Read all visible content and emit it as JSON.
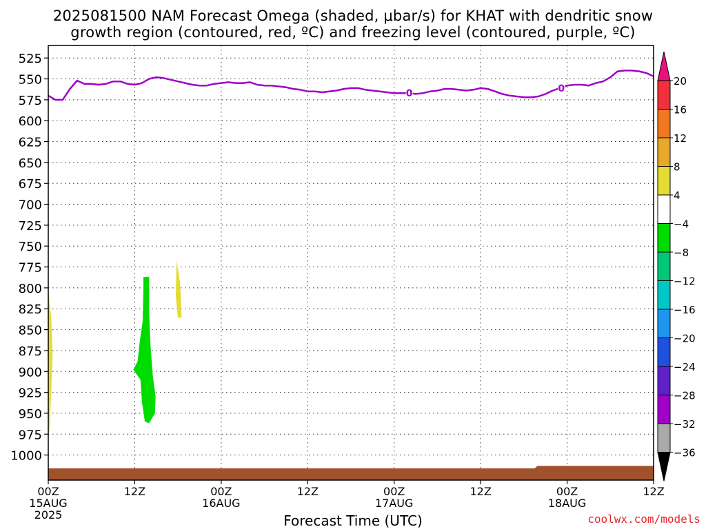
{
  "title_line1": "2025081500 NAM Forecast Omega (shaded, μbar/s) for KHAT with dendritic snow",
  "title_line2": "growth region (contoured, red, ºC) and freezing level (contoured, purple, ºC)",
  "credit": "coolwx.com/models",
  "chart_data": {
    "type": "heatmap",
    "xlabel": "Forecast Time (UTC)",
    "ylabel": "",
    "x_range_hours": [
      0,
      84
    ],
    "y_range_hpa": [
      1030,
      510
    ],
    "grid": true,
    "y_ticks": [
      525,
      550,
      575,
      600,
      625,
      650,
      675,
      700,
      725,
      750,
      775,
      800,
      825,
      850,
      875,
      900,
      925,
      950,
      975,
      1000
    ],
    "x_ticks": [
      {
        "hour": 0,
        "line1": "00Z",
        "line2": "15AUG",
        "line3": "2025"
      },
      {
        "hour": 12,
        "line1": "12Z",
        "line2": "",
        "line3": ""
      },
      {
        "hour": 24,
        "line1": "00Z",
        "line2": "16AUG",
        "line3": ""
      },
      {
        "hour": 36,
        "line1": "12Z",
        "line2": "",
        "line3": ""
      },
      {
        "hour": 48,
        "line1": "00Z",
        "line2": "17AUG",
        "line3": ""
      },
      {
        "hour": 60,
        "line1": "12Z",
        "line2": "",
        "line3": ""
      },
      {
        "hour": 72,
        "line1": "00Z",
        "line2": "18AUG",
        "line3": ""
      },
      {
        "hour": 84,
        "line1": "12Z",
        "line2": "",
        "line3": ""
      }
    ],
    "freezing_level": {
      "color": "#a000c8",
      "label": "0",
      "label_hours": [
        50.1,
        71.2
      ],
      "points": [
        [
          0,
          570
        ],
        [
          1,
          575
        ],
        [
          2,
          575
        ],
        [
          3,
          562
        ],
        [
          4,
          552
        ],
        [
          5,
          556
        ],
        [
          6,
          556
        ],
        [
          7,
          557
        ],
        [
          8,
          556
        ],
        [
          9,
          553
        ],
        [
          10,
          553
        ],
        [
          11,
          556
        ],
        [
          12,
          557
        ],
        [
          13,
          555
        ],
        [
          14,
          550
        ],
        [
          15,
          548
        ],
        [
          16,
          549
        ],
        [
          17,
          551
        ],
        [
          18,
          553
        ],
        [
          19,
          555
        ],
        [
          20,
          557
        ],
        [
          21,
          558
        ],
        [
          22,
          558
        ],
        [
          23,
          556
        ],
        [
          24,
          555
        ],
        [
          25,
          554
        ],
        [
          26,
          555
        ],
        [
          27,
          555
        ],
        [
          28,
          554
        ],
        [
          29,
          557
        ],
        [
          30,
          558
        ],
        [
          31,
          558
        ],
        [
          32,
          559
        ],
        [
          33,
          560
        ],
        [
          34,
          562
        ],
        [
          35,
          563
        ],
        [
          36,
          565
        ],
        [
          37,
          565
        ],
        [
          38,
          566
        ],
        [
          39,
          565
        ],
        [
          40,
          564
        ],
        [
          41,
          562
        ],
        [
          42,
          561
        ],
        [
          43,
          561
        ],
        [
          44,
          563
        ],
        [
          45,
          564
        ],
        [
          46,
          565
        ],
        [
          47,
          566
        ],
        [
          48,
          567
        ],
        [
          49,
          567
        ],
        [
          50,
          567
        ],
        [
          51,
          568
        ],
        [
          52,
          567
        ],
        [
          53,
          565
        ],
        [
          54,
          564
        ],
        [
          55,
          562
        ],
        [
          56,
          562
        ],
        [
          57,
          563
        ],
        [
          58,
          564
        ],
        [
          59,
          563
        ],
        [
          60,
          561
        ],
        [
          61,
          562
        ],
        [
          62,
          565
        ],
        [
          63,
          568
        ],
        [
          64,
          570
        ],
        [
          65,
          571
        ],
        [
          66,
          572
        ],
        [
          67,
          572
        ],
        [
          68,
          571
        ],
        [
          69,
          568
        ],
        [
          70,
          564
        ],
        [
          71,
          561
        ],
        [
          72,
          558
        ],
        [
          73,
          557
        ],
        [
          74,
          557
        ],
        [
          75,
          558
        ],
        [
          76,
          555
        ],
        [
          77,
          553
        ],
        [
          78,
          548
        ],
        [
          79,
          541
        ],
        [
          80,
          540
        ],
        [
          81,
          540
        ],
        [
          82,
          541
        ],
        [
          83,
          543
        ],
        [
          84,
          547
        ]
      ]
    },
    "omega_shaded": [
      {
        "color": "#e4dc30",
        "range": "4 to 8",
        "polygon": [
          [
            0,
            802
          ],
          [
            0.4,
            835
          ],
          [
            0.6,
            880
          ],
          [
            0.4,
            925
          ],
          [
            0.2,
            968
          ],
          [
            0,
            975
          ]
        ]
      },
      {
        "color": "#00dc00",
        "range": "-8 to -4",
        "polygon": [
          [
            13.2,
            787
          ],
          [
            14.0,
            787
          ],
          [
            14.0,
            830
          ],
          [
            14.2,
            870
          ],
          [
            14.5,
            905
          ],
          [
            14.9,
            930
          ],
          [
            14.8,
            950
          ],
          [
            14.0,
            962
          ],
          [
            13.4,
            960
          ],
          [
            13.0,
            937
          ],
          [
            12.8,
            910
          ],
          [
            11.8,
            898
          ],
          [
            12.4,
            888
          ],
          [
            12.7,
            864
          ],
          [
            13.1,
            840
          ],
          [
            13.2,
            800
          ]
        ]
      },
      {
        "color": "#e4dc30",
        "range": "4 to 8",
        "polygon": [
          [
            17.8,
            767
          ],
          [
            18.3,
            795
          ],
          [
            18.5,
            835
          ],
          [
            18.0,
            836
          ],
          [
            17.7,
            810
          ]
        ]
      }
    ],
    "terrain": {
      "color": "#a0522d",
      "top_hpa": 1016,
      "top_raised_hpa": 1013,
      "raised_hour_ranges": [
        [
          67.5,
          84
        ]
      ]
    },
    "colorbar": {
      "labels": [
        "20",
        "16",
        "12",
        "8",
        "4",
        "−4",
        "−8",
        "−12",
        "−16",
        "−20",
        "−24",
        "−28",
        "−32",
        "−36"
      ],
      "top_arrow": "#e6147a",
      "bins": [
        "#f0303a",
        "#f07820",
        "#e8a82a",
        "#e4dc30",
        "#ffffff",
        "#00dc00",
        "#00c878",
        "#00c8c8",
        "#1e96f0",
        "#2050e0",
        "#6020c8",
        "#a000c8",
        "#aaaaaa"
      ],
      "bottom_arrow": "#000000"
    }
  }
}
